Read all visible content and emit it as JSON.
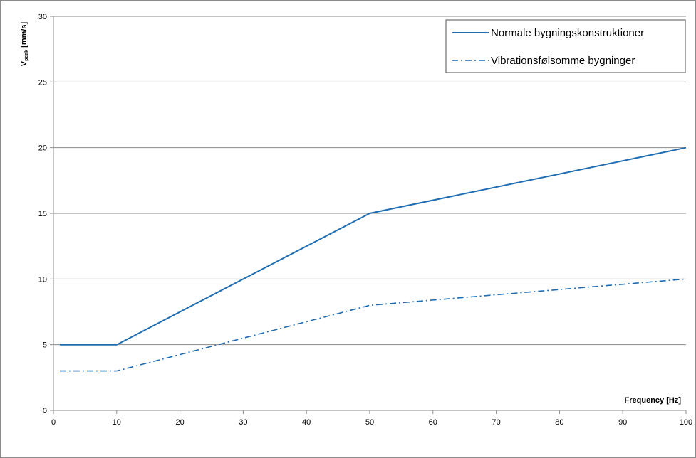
{
  "chart_data": {
    "type": "line",
    "title": "",
    "xlabel": "Frequency [Hz]",
    "ylabel_main": "V",
    "ylabel_sub": "peak",
    "ylabel_unit": " [mm/s]",
    "xlim": [
      0,
      100
    ],
    "ylim": [
      0,
      30
    ],
    "x_ticks": [
      0,
      10,
      20,
      30,
      40,
      50,
      60,
      70,
      80,
      90,
      100
    ],
    "y_ticks": [
      0,
      5,
      10,
      15,
      20,
      25,
      30
    ],
    "grid": "horizontal",
    "legend_position": "top-right",
    "series": [
      {
        "name": "Normale bygningskonstruktioner",
        "style": "solid",
        "color": "#1f6db2",
        "points": [
          [
            1,
            5
          ],
          [
            10,
            5
          ],
          [
            50,
            15
          ],
          [
            100,
            20
          ]
        ]
      },
      {
        "name": "Vibrationsfølsomme bygninger",
        "style": "dash-dot",
        "color": "#1f6db2",
        "points": [
          [
            1,
            3
          ],
          [
            10,
            3
          ],
          [
            50,
            8
          ],
          [
            100,
            10
          ]
        ]
      }
    ]
  }
}
